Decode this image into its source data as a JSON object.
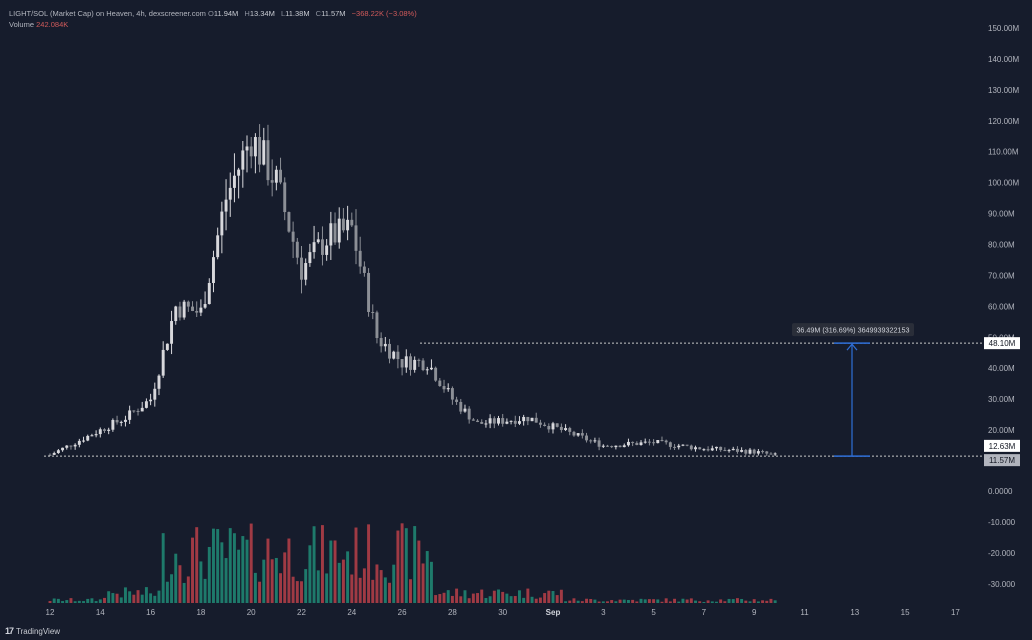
{
  "legend": {
    "pair": "LIGHT/SOL (Market Cap) on Heaven, 4h, dexscreener.com",
    "o_label": "O",
    "o_val": "11.94M",
    "h_label": "H",
    "h_val": "13.34M",
    "l_label": "L",
    "l_val": "11.38M",
    "c_label": "C",
    "c_val": "11.57M",
    "change": "−368.22K (−3.08%)",
    "volume_label": "Volume",
    "volume_val": "242.084K"
  },
  "footer": {
    "logo": "17",
    "brand": "TradingView"
  },
  "colors": {
    "background": "#161c2c",
    "candle": "#d8d8dc",
    "candle_down": "#8c8f96",
    "vol_up": "#1e7a6b",
    "vol_down": "#a03a44",
    "measure": "#2f6fd8",
    "dotted": "#c8c8c8"
  },
  "chart_data": {
    "type": "candlestick",
    "title": "LIGHT/SOL (Market Cap) on Heaven, 4h, dexscreener.com",
    "x_ticks": [
      "12",
      "14",
      "16",
      "18",
      "20",
      "22",
      "24",
      "26",
      "28",
      "30",
      "Sep",
      "3",
      "5",
      "7",
      "9",
      "11",
      "13",
      "15",
      "17"
    ],
    "y_ticks": [
      "150.00M",
      "140.00M",
      "130.00M",
      "120.00M",
      "110.00M",
      "100.00M",
      "90.00M",
      "80.00M",
      "70.00M",
      "60.00M",
      "50.00M",
      "40.00M",
      "30.00M",
      "20.00M",
      "10.00M"
    ],
    "volume_ticks": [
      "0.0000",
      "-10.000",
      "-20.000",
      "-30.000"
    ],
    "price_range_millions": [
      8,
      153
    ],
    "price_labels": {
      "high_line": "48.10M",
      "close": "11.57M",
      "mid": "12.63M"
    },
    "high_line_value_millions": 48.1,
    "low_line_value_millions": 11.57,
    "measure_label": "36.49M (316.69%) 3649939322153",
    "key_points_millions": [
      {
        "x": "12",
        "close": 12
      },
      {
        "x": "14",
        "close": 20
      },
      {
        "x": "15",
        "close": 24
      },
      {
        "x": "16",
        "close": 30
      },
      {
        "x": "17",
        "close": 60
      },
      {
        "x": "18",
        "close": 58
      },
      {
        "x": "19",
        "close": 95
      },
      {
        "x": "20",
        "close": 115
      },
      {
        "x": "21",
        "close": 100
      },
      {
        "x": "22",
        "close": 72
      },
      {
        "x": "23",
        "close": 82
      },
      {
        "x": "24",
        "close": 85
      },
      {
        "x": "25",
        "close": 50
      },
      {
        "x": "26",
        "close": 42
      },
      {
        "x": "27",
        "close": 42
      },
      {
        "x": "28",
        "close": 30
      },
      {
        "x": "29",
        "close": 22
      },
      {
        "x": "30",
        "close": 23
      },
      {
        "x": "31",
        "close": 24
      },
      {
        "x": "Sep",
        "close": 21
      },
      {
        "x": "3",
        "close": 15
      },
      {
        "x": "5",
        "close": 16
      },
      {
        "x": "7",
        "close": 14
      },
      {
        "x": "9",
        "close": 13
      },
      {
        "x": "10",
        "close": 11.57
      }
    ]
  }
}
